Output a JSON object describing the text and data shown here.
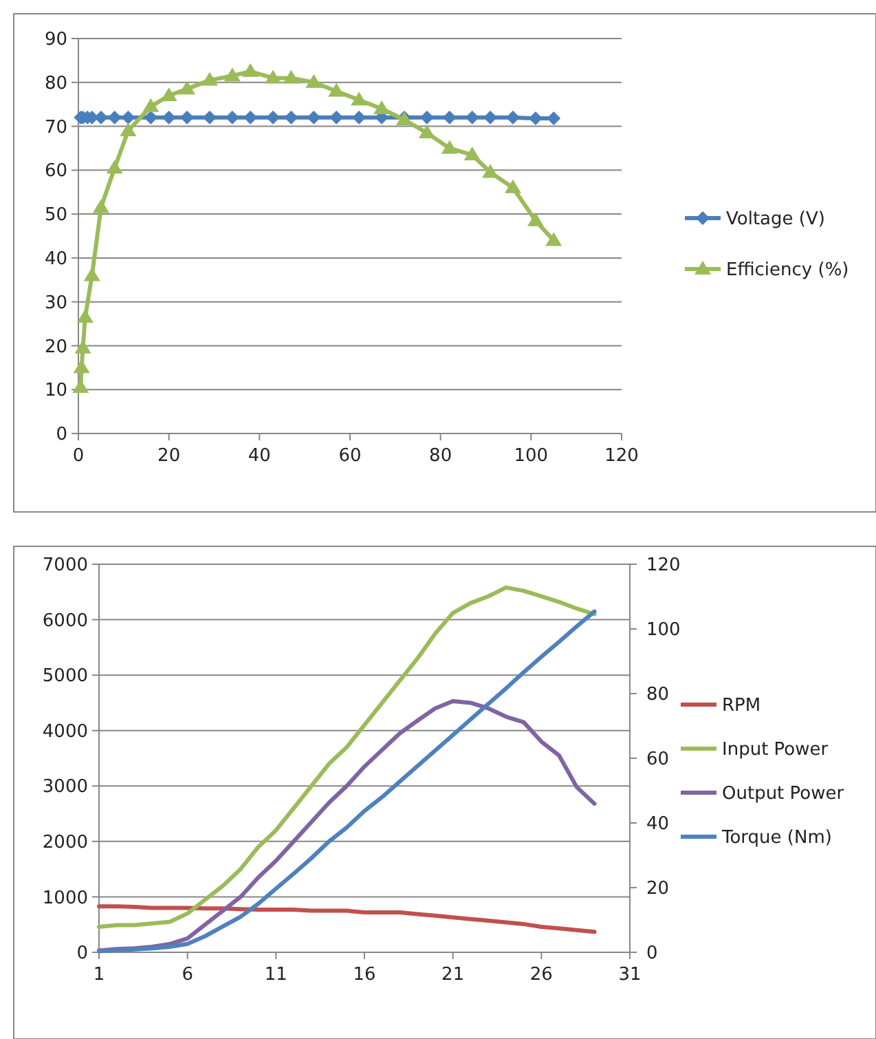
{
  "chart_data": [
    {
      "type": "line",
      "xlim": [
        0,
        120
      ],
      "xticks": [
        0,
        20,
        40,
        60,
        80,
        100,
        120
      ],
      "ylim": [
        0,
        90
      ],
      "yticks": [
        0,
        10,
        20,
        30,
        40,
        50,
        60,
        70,
        80,
        90
      ],
      "grid": "y",
      "legend": "right",
      "series": [
        {
          "name": "Voltage (V)",
          "color": "#4a7ebb",
          "marker": "diamond",
          "x": [
            0.5,
            1,
            2,
            3,
            5,
            8,
            11,
            16,
            20,
            24,
            29,
            34,
            38,
            43,
            47,
            52,
            57,
            62,
            67,
            72,
            77,
            82,
            87,
            91,
            96,
            101,
            105
          ],
          "values": [
            72,
            72,
            72,
            72,
            72,
            72,
            72,
            72,
            72,
            72,
            72,
            72,
            72,
            72,
            72,
            72,
            72,
            72,
            72,
            72,
            72,
            72,
            72,
            72,
            72,
            71.8,
            71.8
          ]
        },
        {
          "name": "Efficiency (%)",
          "color": "#9bbb59",
          "marker": "triangle",
          "x": [
            0.5,
            0.7,
            1,
            1.5,
            3,
            5,
            8,
            11,
            16,
            20,
            24,
            29,
            34,
            38,
            43,
            47,
            52,
            57,
            62,
            67,
            72,
            77,
            82,
            87,
            91,
            96,
            101,
            105
          ],
          "values": [
            10.5,
            15,
            19.5,
            26.5,
            36,
            51.5,
            60.5,
            69,
            74.5,
            77,
            78.5,
            80.5,
            81.5,
            82.5,
            81,
            81,
            80,
            78,
            76,
            74,
            71.5,
            68.5,
            65,
            63.5,
            59.5,
            56,
            48.5,
            44
          ]
        }
      ]
    },
    {
      "type": "line",
      "xlim": [
        1,
        31
      ],
      "xticks": [
        1,
        6,
        11,
        16,
        21,
        26,
        31
      ],
      "ylim": [
        0,
        7000
      ],
      "yticks": [
        0,
        1000,
        2000,
        3000,
        4000,
        5000,
        6000,
        7000
      ],
      "y2lim": [
        0,
        120
      ],
      "y2ticks": [
        0,
        20,
        40,
        60,
        80,
        100,
        120
      ],
      "grid": "y",
      "legend": "right",
      "series": [
        {
          "name": "RPM",
          "color": "#c0504d",
          "x": [
            1,
            2,
            3,
            4,
            5,
            6,
            7,
            8,
            9,
            10,
            11,
            12,
            13,
            14,
            15,
            16,
            17,
            18,
            19,
            20,
            21,
            22,
            23,
            24,
            25,
            26,
            27,
            28,
            29
          ],
          "values": [
            830,
            830,
            820,
            800,
            800,
            800,
            790,
            790,
            780,
            770,
            770,
            770,
            750,
            750,
            750,
            720,
            720,
            720,
            690,
            660,
            630,
            600,
            570,
            540,
            510,
            460,
            430,
            400,
            370
          ]
        },
        {
          "name": "Input Power",
          "color": "#9bbb59",
          "x": [
            1,
            2,
            3,
            4,
            5,
            6,
            7,
            8,
            9,
            10,
            11,
            12,
            13,
            14,
            15,
            16,
            17,
            18,
            19,
            20,
            21,
            22,
            23,
            24,
            25,
            26,
            27,
            28,
            29
          ],
          "values": [
            460,
            490,
            490,
            520,
            550,
            700,
            950,
            1200,
            1500,
            1900,
            2200,
            2600,
            3000,
            3400,
            3700,
            4100,
            4500,
            4900,
            5300,
            5750,
            6120,
            6300,
            6420,
            6580,
            6520,
            6420,
            6320,
            6200,
            6100
          ]
        },
        {
          "name": "Output Power",
          "color": "#8064a2",
          "x": [
            1,
            2,
            3,
            4,
            5,
            6,
            7,
            8,
            9,
            10,
            11,
            12,
            13,
            14,
            15,
            16,
            17,
            18,
            19,
            20,
            21,
            22,
            23,
            24,
            25,
            26,
            27,
            28,
            29
          ],
          "values": [
            30,
            60,
            70,
            100,
            150,
            250,
            500,
            750,
            1000,
            1350,
            1650,
            2000,
            2350,
            2700,
            3000,
            3350,
            3650,
            3950,
            4180,
            4400,
            4530,
            4500,
            4400,
            4250,
            4150,
            3800,
            3550,
            2980,
            2680
          ]
        },
        {
          "name": "Torque (Nm)",
          "color": "#4f81bd",
          "axis": "y2",
          "x": [
            1,
            2,
            3,
            4,
            5,
            6,
            7,
            8,
            9,
            10,
            11,
            12,
            13,
            14,
            15,
            16,
            17,
            18,
            19,
            20,
            21,
            22,
            23,
            24,
            25,
            26,
            27,
            28,
            29
          ],
          "values": [
            0.3,
            0.7,
            0.9,
            1.2,
            1.7,
            2.6,
            5,
            8,
            11,
            15,
            19.7,
            24.3,
            29.1,
            34.3,
            38.6,
            43.7,
            48,
            52.8,
            57.6,
            62.4,
            67.2,
            72,
            76.8,
            81.6,
            86.6,
            91.4,
            96,
            100.8,
            105.4
          ]
        }
      ]
    }
  ]
}
